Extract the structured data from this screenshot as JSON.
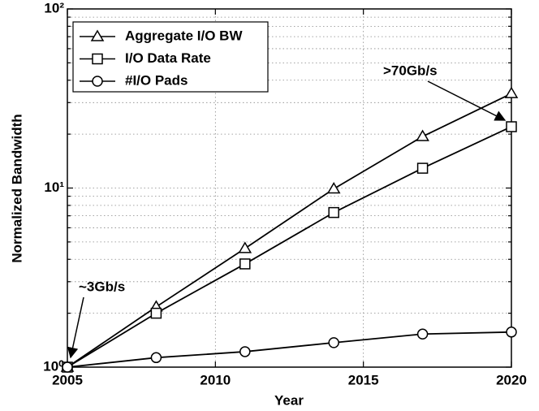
{
  "chart_data": {
    "type": "line",
    "xlabel": "Year",
    "ylabel": "Normalized Bandwidth",
    "x": [
      2005,
      2008,
      2011,
      2014,
      2017,
      2020
    ],
    "xlim": [
      2005,
      2020
    ],
    "xticks": [
      2005,
      2010,
      2015,
      2020
    ],
    "ylim": [
      1,
      100
    ],
    "log_y": true,
    "yticks": [
      {
        "value": 1,
        "label": "10⁰"
      },
      {
        "value": 10,
        "label": "10¹"
      },
      {
        "value": 100,
        "label": "10²"
      }
    ],
    "yminorticks": [
      2,
      3,
      4,
      5,
      6,
      7,
      8,
      9,
      20,
      30,
      40,
      50,
      60,
      70,
      80,
      90
    ],
    "grid": true,
    "legend": "upper left",
    "series": [
      {
        "name": "Aggregate I/O BW",
        "color": "#000000",
        "marker": "triangle",
        "values": [
          1,
          2.17,
          4.6,
          9.9,
          19.4,
          33.7
        ]
      },
      {
        "name": "I/O Data Rate",
        "color": "#000000",
        "marker": "square",
        "values": [
          1,
          2.0,
          3.77,
          7.3,
          12.9,
          22
        ]
      },
      {
        "name": "#I/O Pads",
        "color": "#000000",
        "marker": "circle",
        "values": [
          1,
          1.13,
          1.22,
          1.37,
          1.53,
          1.57
        ]
      }
    ],
    "annotations": [
      ">70Gb/s",
      "~3Gb/s"
    ]
  }
}
